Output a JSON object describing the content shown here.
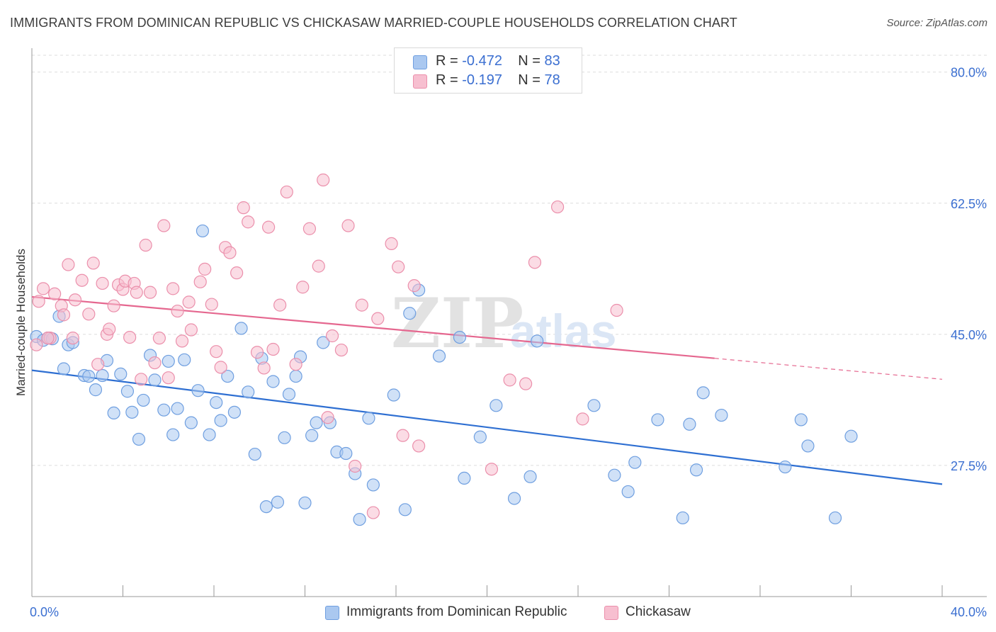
{
  "title": "IMMIGRANTS FROM DOMINICAN REPUBLIC VS CHICKASAW MARRIED-COUPLE HOUSEHOLDS CORRELATION CHART",
  "source": "Source: ZipAtlas.com",
  "watermark": {
    "zip": "ZIP",
    "atlas": "atlas"
  },
  "legend_top": {
    "rows": [
      {
        "r_label": "R =",
        "r_value": "-0.472",
        "n_label": "N =",
        "n_value": "83"
      },
      {
        "r_label": "R =",
        "r_value": "-0.197",
        "n_label": "N =",
        "n_value": "78"
      }
    ]
  },
  "legend_bottom": {
    "items": [
      {
        "label": "Immigrants from Dominican Republic"
      },
      {
        "label": "Chickasaw"
      }
    ]
  },
  "colors": {
    "blue_fill": "#aac8f0",
    "blue_stroke": "#6f9fe0",
    "blue_line": "#2e6fd2",
    "pink_fill": "#f7bfd0",
    "pink_stroke": "#eb8fab",
    "pink_line": "#e5678f",
    "grid": "#dddddd",
    "tick_label": "#3b6fd1",
    "axis": "#999999"
  },
  "chart_data": {
    "type": "scatter",
    "title": "IMMIGRANTS FROM DOMINICAN REPUBLIC VS CHICKASAW MARRIED-COUPLE HOUSEHOLDS CORRELATION CHART",
    "xlabel": "",
    "ylabel": "Married-couple Households",
    "xlim": [
      0,
      40
    ],
    "ylim": [
      10,
      83
    ],
    "x_tick_labels": [
      "0.0%",
      "40.0%"
    ],
    "y_ticks": [
      {
        "value": 27.5,
        "label": "27.5%"
      },
      {
        "value": 45.0,
        "label": "45.0%"
      },
      {
        "value": 62.5,
        "label": "62.5%"
      },
      {
        "value": 80.0,
        "label": "80.0%"
      }
    ],
    "grid": true,
    "series": [
      {
        "name": "Immigrants from Dominican Republic",
        "color": "blue",
        "R": -0.472,
        "N": 83,
        "trend": {
          "x": [
            0,
            40
          ],
          "y": [
            40.2,
            25.0
          ]
        },
        "points": [
          [
            0.2,
            44.7
          ],
          [
            0.5,
            44.2
          ],
          [
            0.7,
            44.5
          ],
          [
            0.9,
            44.4
          ],
          [
            1.2,
            47.4
          ],
          [
            1.6,
            43.6
          ],
          [
            1.8,
            43.9
          ],
          [
            1.4,
            40.4
          ],
          [
            2.3,
            39.5
          ],
          [
            2.5,
            39.4
          ],
          [
            2.8,
            37.6
          ],
          [
            3.1,
            39.5
          ],
          [
            3.3,
            41.5
          ],
          [
            3.6,
            34.5
          ],
          [
            3.9,
            39.7
          ],
          [
            4.2,
            37.4
          ],
          [
            4.4,
            34.6
          ],
          [
            4.7,
            31.0
          ],
          [
            4.9,
            36.2
          ],
          [
            5.2,
            42.2
          ],
          [
            5.4,
            38.9
          ],
          [
            5.8,
            34.9
          ],
          [
            6.0,
            41.4
          ],
          [
            6.2,
            31.6
          ],
          [
            6.4,
            35.1
          ],
          [
            6.7,
            41.6
          ],
          [
            7.0,
            33.2
          ],
          [
            7.3,
            37.5
          ],
          [
            7.5,
            58.8
          ],
          [
            7.8,
            31.6
          ],
          [
            8.1,
            35.9
          ],
          [
            8.3,
            33.5
          ],
          [
            8.6,
            39.4
          ],
          [
            8.9,
            34.6
          ],
          [
            9.2,
            45.8
          ],
          [
            9.5,
            37.3
          ],
          [
            9.8,
            29.0
          ],
          [
            10.1,
            41.8
          ],
          [
            10.3,
            22.0
          ],
          [
            10.6,
            38.7
          ],
          [
            10.8,
            22.6
          ],
          [
            11.1,
            31.2
          ],
          [
            11.3,
            37.0
          ],
          [
            11.6,
            39.4
          ],
          [
            11.8,
            42.0
          ],
          [
            12.0,
            22.5
          ],
          [
            12.3,
            31.5
          ],
          [
            12.5,
            33.2
          ],
          [
            12.8,
            43.9
          ],
          [
            13.1,
            33.2
          ],
          [
            13.4,
            29.3
          ],
          [
            13.8,
            29.1
          ],
          [
            14.2,
            26.4
          ],
          [
            14.4,
            20.3
          ],
          [
            14.8,
            33.8
          ],
          [
            15.0,
            24.9
          ],
          [
            15.9,
            36.9
          ],
          [
            16.4,
            21.6
          ],
          [
            16.6,
            47.8
          ],
          [
            17.0,
            50.9
          ],
          [
            17.9,
            42.1
          ],
          [
            18.8,
            44.6
          ],
          [
            19.0,
            25.8
          ],
          [
            19.7,
            31.3
          ],
          [
            20.4,
            35.5
          ],
          [
            21.2,
            23.1
          ],
          [
            21.9,
            26.0
          ],
          [
            22.2,
            44.1
          ],
          [
            24.7,
            35.5
          ],
          [
            25.6,
            26.2
          ],
          [
            26.2,
            24.0
          ],
          [
            26.5,
            27.9
          ],
          [
            27.5,
            33.6
          ],
          [
            28.6,
            20.5
          ],
          [
            28.9,
            33.0
          ],
          [
            29.2,
            26.9
          ],
          [
            29.5,
            37.2
          ],
          [
            30.3,
            34.2
          ],
          [
            33.1,
            27.3
          ],
          [
            33.8,
            33.6
          ],
          [
            34.1,
            30.1
          ],
          [
            35.3,
            20.5
          ],
          [
            36.0,
            31.4
          ]
        ]
      },
      {
        "name": "Chickasaw",
        "color": "pink",
        "R": -0.197,
        "N": 78,
        "trend": {
          "x": [
            0,
            30
          ],
          "y": [
            50.0,
            41.8
          ]
        },
        "trend_dashed": {
          "x": [
            30,
            40
          ],
          "y": [
            41.8,
            39.0
          ]
        },
        "points": [
          [
            0.2,
            43.6
          ],
          [
            0.3,
            49.4
          ],
          [
            0.5,
            51.1
          ],
          [
            0.8,
            44.5
          ],
          [
            1.0,
            50.4
          ],
          [
            1.3,
            48.8
          ],
          [
            1.4,
            47.6
          ],
          [
            1.6,
            54.3
          ],
          [
            1.8,
            44.5
          ],
          [
            1.9,
            49.6
          ],
          [
            2.2,
            52.2
          ],
          [
            2.5,
            47.7
          ],
          [
            2.7,
            54.5
          ],
          [
            2.9,
            41.0
          ],
          [
            3.1,
            51.8
          ],
          [
            3.3,
            45.0
          ],
          [
            3.4,
            45.7
          ],
          [
            3.6,
            48.8
          ],
          [
            3.8,
            51.6
          ],
          [
            4.0,
            51.0
          ],
          [
            4.1,
            52.1
          ],
          [
            4.3,
            44.6
          ],
          [
            4.5,
            51.8
          ],
          [
            4.6,
            50.6
          ],
          [
            4.8,
            39.0
          ],
          [
            5.0,
            56.9
          ],
          [
            5.2,
            50.6
          ],
          [
            5.4,
            41.2
          ],
          [
            5.6,
            44.5
          ],
          [
            5.8,
            59.5
          ],
          [
            6.0,
            39.2
          ],
          [
            6.2,
            51.1
          ],
          [
            6.4,
            48.1
          ],
          [
            6.6,
            44.1
          ],
          [
            6.9,
            49.3
          ],
          [
            7.0,
            45.6
          ],
          [
            7.4,
            52.0
          ],
          [
            7.6,
            53.7
          ],
          [
            7.9,
            49.0
          ],
          [
            8.1,
            42.7
          ],
          [
            8.3,
            40.6
          ],
          [
            8.5,
            56.6
          ],
          [
            8.7,
            55.9
          ],
          [
            9.0,
            53.2
          ],
          [
            9.3,
            61.9
          ],
          [
            9.5,
            60.0
          ],
          [
            9.9,
            42.6
          ],
          [
            10.2,
            40.5
          ],
          [
            10.4,
            59.3
          ],
          [
            10.6,
            43.0
          ],
          [
            10.9,
            48.9
          ],
          [
            11.2,
            64.0
          ],
          [
            11.6,
            41.0
          ],
          [
            11.9,
            51.3
          ],
          [
            12.2,
            59.1
          ],
          [
            12.6,
            54.1
          ],
          [
            12.8,
            65.6
          ],
          [
            13.0,
            33.9
          ],
          [
            13.2,
            44.8
          ],
          [
            13.6,
            42.9
          ],
          [
            13.9,
            59.5
          ],
          [
            14.2,
            27.4
          ],
          [
            14.5,
            48.9
          ],
          [
            15.0,
            21.2
          ],
          [
            15.2,
            47.1
          ],
          [
            15.8,
            57.1
          ],
          [
            16.1,
            54.0
          ],
          [
            16.3,
            31.5
          ],
          [
            16.8,
            51.5
          ],
          [
            17.0,
            30.1
          ],
          [
            20.2,
            27.0
          ],
          [
            21.0,
            38.9
          ],
          [
            21.7,
            38.4
          ],
          [
            22.1,
            54.6
          ],
          [
            23.1,
            62.0
          ],
          [
            24.2,
            33.7
          ],
          [
            25.7,
            48.2
          ],
          [
            0.7,
            44.5
          ]
        ]
      }
    ]
  }
}
